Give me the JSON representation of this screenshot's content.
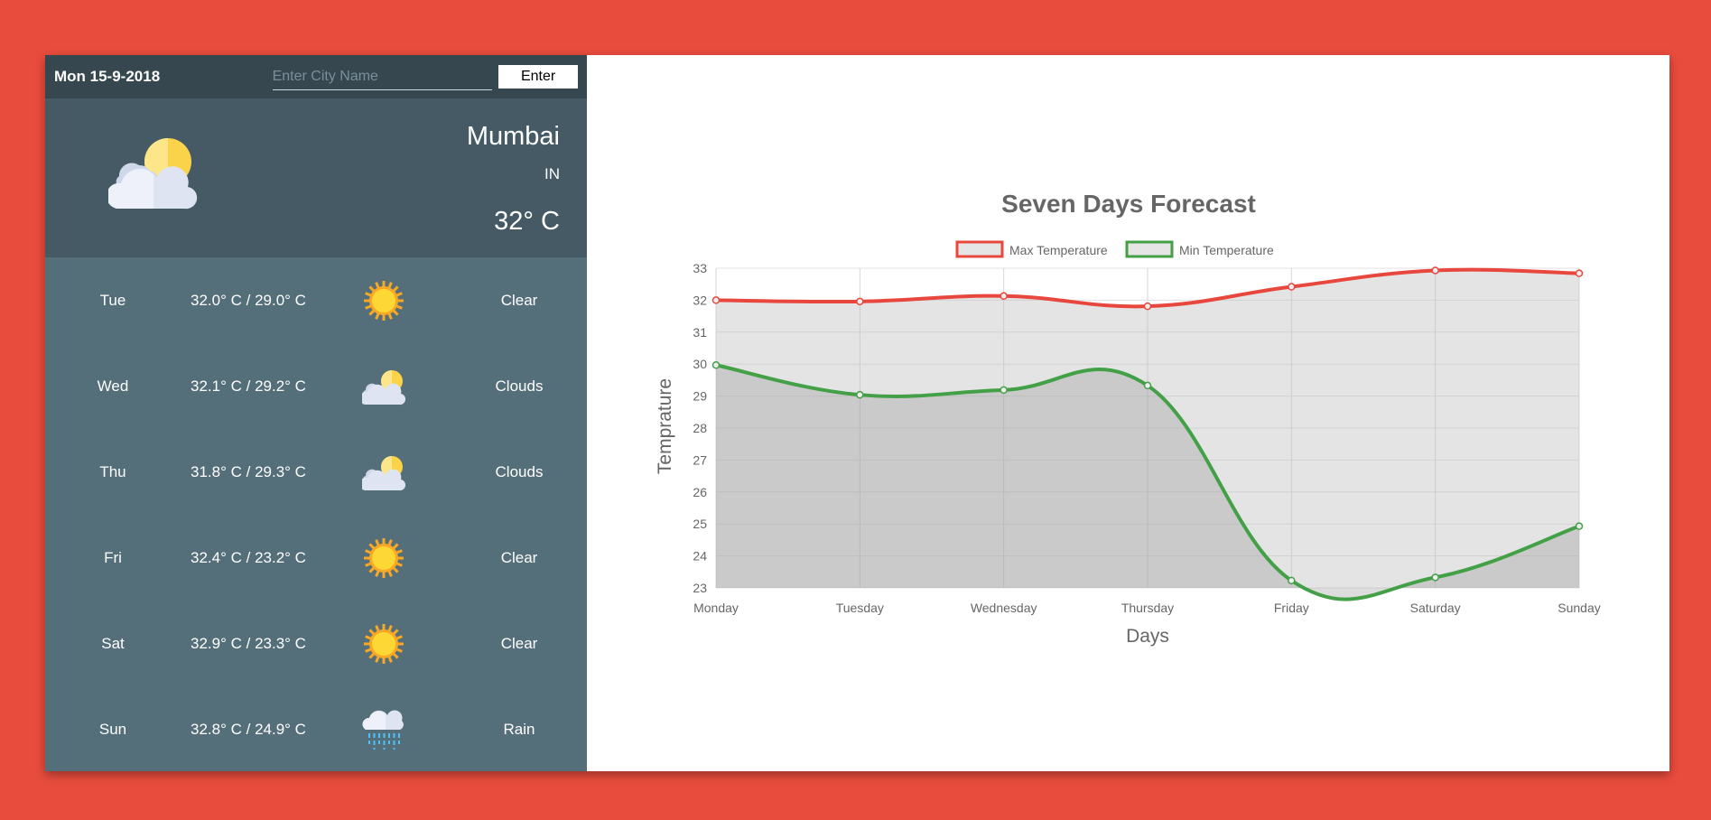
{
  "header": {
    "date": "Mon 15-9-2018",
    "city_placeholder": "Enter City Name",
    "city_value": "",
    "enter_label": "Enter"
  },
  "current": {
    "icon": "partly-cloudy-icon",
    "city": "Mumbai",
    "country": "IN",
    "temp": "32° C"
  },
  "forecast": [
    {
      "day": "Tue",
      "range": "32.0° C / 29.0° C",
      "icon": "sun-icon",
      "desc": "Clear"
    },
    {
      "day": "Wed",
      "range": "32.1° C / 29.2° C",
      "icon": "partly-cloudy-icon",
      "desc": "Clouds"
    },
    {
      "day": "Thu",
      "range": "31.8° C / 29.3° C",
      "icon": "partly-cloudy-icon",
      "desc": "Clouds"
    },
    {
      "day": "Fri",
      "range": "32.4° C / 23.2° C",
      "icon": "sun-icon",
      "desc": "Clear"
    },
    {
      "day": "Sat",
      "range": "32.9° C / 23.3° C",
      "icon": "sun-icon",
      "desc": "Clear"
    },
    {
      "day": "Sun",
      "range": "32.8° C / 24.9° C",
      "icon": "rain-icon",
      "desc": "Rain"
    }
  ],
  "colors": {
    "background": "#e84c3d",
    "topbar": "#37474f",
    "current_panel": "#455a64",
    "forecast_panel": "#546e7a",
    "max_line": "#e8473e",
    "min_line": "#43a047"
  },
  "chart_data": {
    "type": "line",
    "title": "Seven Days Forecast",
    "xlabel": "Days",
    "ylabel": "Temprature",
    "categories": [
      "Monday",
      "Tuesday",
      "Wednesday",
      "Thursday",
      "Friday",
      "Saturday",
      "Sunday"
    ],
    "series": [
      {
        "name": "Max Temperature",
        "values": [
          32.0,
          31.96,
          32.13,
          31.81,
          32.42,
          32.93,
          32.84
        ],
        "color": "#e8473e"
      },
      {
        "name": "Min Temperature",
        "values": [
          29.97,
          29.04,
          29.19,
          29.33,
          23.23,
          23.33,
          24.93
        ],
        "color": "#43a047"
      }
    ],
    "ylim": [
      23,
      33
    ],
    "yticks": [
      23,
      24,
      25,
      26,
      27,
      28,
      29,
      30,
      31,
      32,
      33
    ],
    "grid": true,
    "legend": "top",
    "filled": true,
    "smooth": true
  }
}
